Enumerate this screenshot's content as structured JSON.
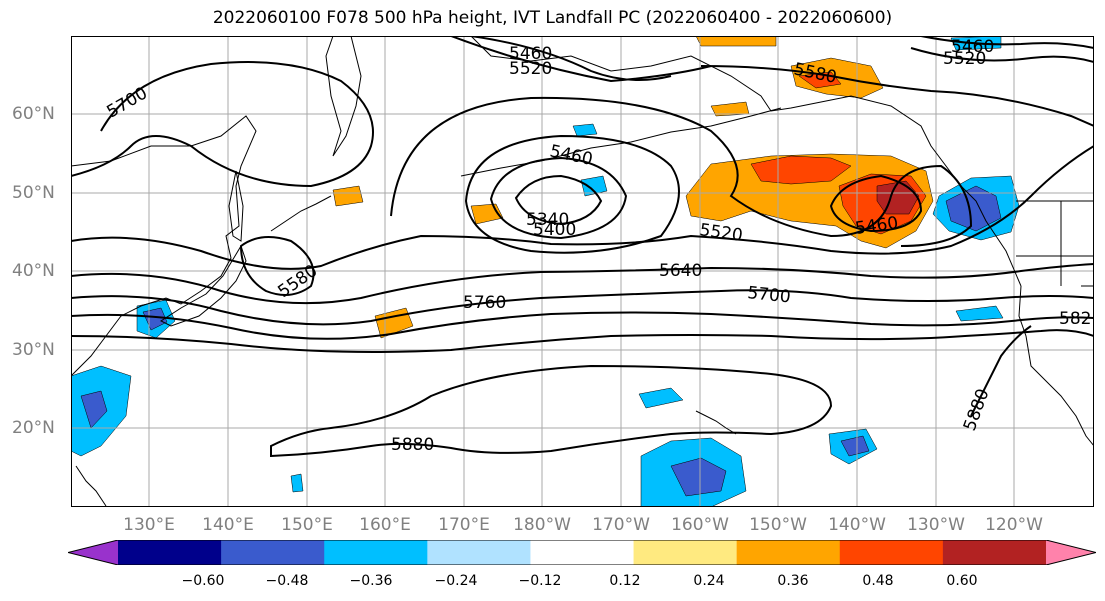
{
  "title": "2022060100 F078 500 hPa height, IVT Landfall PC (2022060400 - 2022060600)",
  "lat_labels": [
    "60°N",
    "50°N",
    "40°N",
    "30°N",
    "20°N"
  ],
  "lon_labels": [
    "130°E",
    "140°E",
    "150°E",
    "160°E",
    "170°E",
    "180°W",
    "170°W",
    "160°W",
    "150°W",
    "140°W",
    "130°W",
    "120°W"
  ],
  "contour_labels": [
    "5460",
    "5520",
    "5580",
    "5460",
    "5520",
    "5700",
    "5460",
    "5340",
    "5400",
    "5520",
    "5460",
    "5580",
    "5640",
    "5700",
    "5760",
    "582",
    "5880",
    "5880"
  ],
  "colorbar": {
    "ticks": [
      "−0.60",
      "−0.48",
      "−0.36",
      "−0.24",
      "−0.12",
      "0.12",
      "0.24",
      "0.36",
      "0.48",
      "0.60"
    ],
    "colors": [
      "#9932cc",
      "#00008b",
      "#3a5bcd",
      "#00bfff",
      "#b0e2ff",
      "#ffffff",
      "#ffea80",
      "#ffa500",
      "#ff4500",
      "#b22222",
      "#ff82ab"
    ]
  }
}
